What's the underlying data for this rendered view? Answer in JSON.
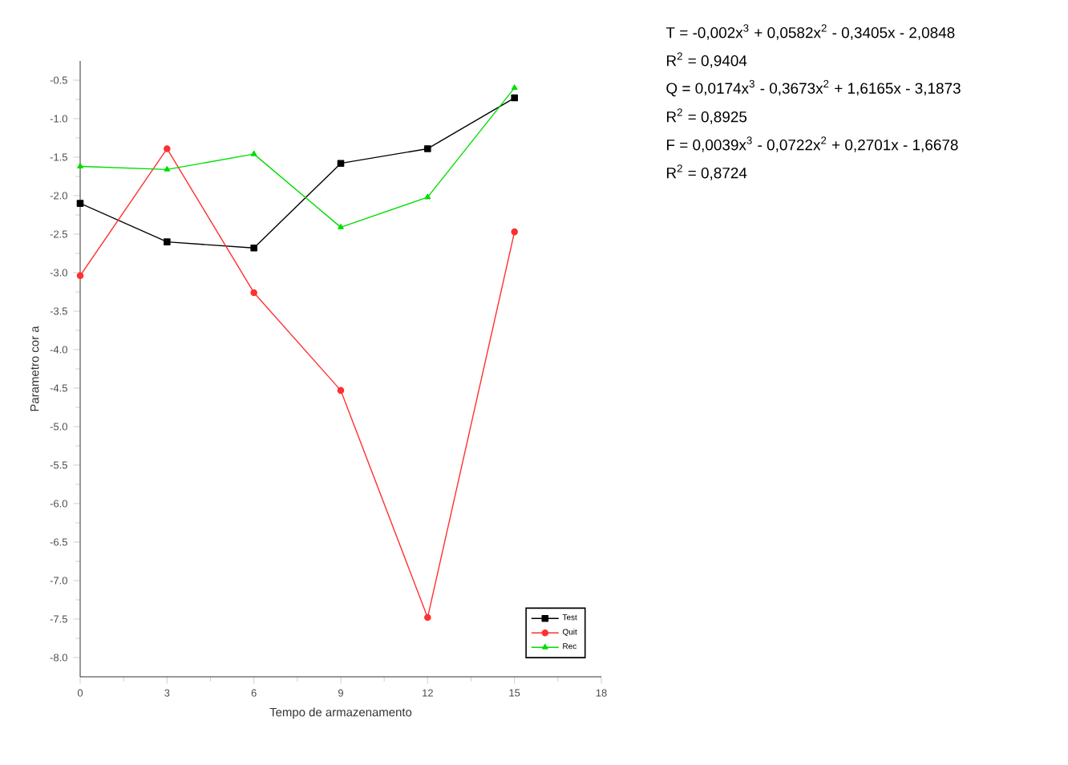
{
  "chart_data": {
    "type": "line",
    "xlabel": "Tempo de armazenamento",
    "ylabel": "Parametro cor a",
    "x": [
      0,
      3,
      6,
      9,
      12,
      15
    ],
    "series": [
      {
        "name": "Test",
        "color": "#000000",
        "marker": "square",
        "values": [
          -2.1,
          -2.6,
          -2.68,
          -1.58,
          -1.39,
          -0.73
        ]
      },
      {
        "name": "Quit",
        "color": "#ff3030",
        "marker": "circle",
        "values": [
          -3.04,
          -1.39,
          -3.26,
          -4.53,
          -7.48,
          -2.47
        ]
      },
      {
        "name": "Rec",
        "color": "#00dd00",
        "marker": "triangle",
        "values": [
          -1.62,
          -1.66,
          -1.46,
          -2.41,
          -2.02,
          -0.6
        ]
      }
    ],
    "xlim": [
      0,
      18
    ],
    "xticks": [
      0,
      3,
      6,
      9,
      12,
      15,
      18
    ],
    "ylim": [
      -8.25,
      -0.25
    ],
    "yticks": [
      {
        "value": -8,
        "label": "-8.0"
      },
      -7.5,
      {
        "value": -7,
        "label": "-7.0"
      },
      -6.5,
      {
        "value": -6,
        "label": "-6.0"
      },
      -5.5,
      {
        "value": -5,
        "label": "-5.0"
      },
      -4.5,
      {
        "value": -4,
        "label": "-4.0"
      },
      -3.5,
      {
        "value": -3,
        "label": "-3.0"
      },
      -2.5,
      {
        "value": -2,
        "label": "-2.0"
      },
      -1.5,
      {
        "value": -1,
        "label": "-1.0"
      },
      -0.5
    ],
    "legend": "bottom right",
    "grid": false,
    "line_style": "solid",
    "annotations": [
      "T = -0,002x$^{3}$ + 0,0582x$^{2}$ - 0,3405x - 2,0848",
      "R$^{2}$ = 0,9404",
      "Q = 0,0174x$^{3}$ - 0,3673x$^{2}$ + 1,6165x - 3,1873",
      "R$^{2}$ = 0,8925",
      "F = 0,0039x$^{3}$ - 0,0722x$^{2}$ + 0,2701x - 1,6678",
      "R$^{2}$ = 0,8724"
    ]
  }
}
